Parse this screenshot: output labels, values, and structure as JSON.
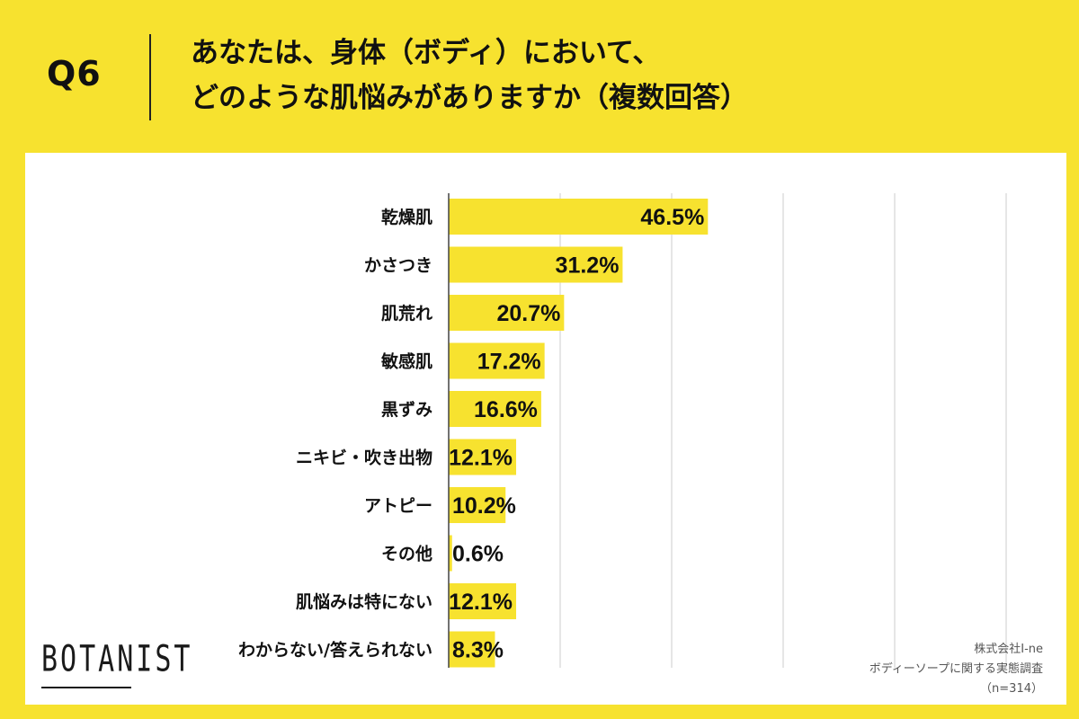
{
  "header": {
    "q_label": "Q6",
    "title_line1": "あなたは、身体（ボディ）において、",
    "title_line2": "どのような肌悩みがありますか（複数回答）"
  },
  "footer": {
    "logo": "BOTANIST",
    "source_company": "株式会社I-ne",
    "source_survey": "ボディーソープに関する実態調査",
    "source_n": "（n=314）"
  },
  "colors": {
    "bar": "#f7e22f",
    "background": "#f7e22f",
    "grid": "#cccccc",
    "axis": "#444444"
  },
  "chart_data": {
    "type": "bar",
    "orientation": "horizontal",
    "title": "どのような肌悩みがありますか（複数回答）",
    "unit": "%",
    "xlim": [
      0,
      100
    ],
    "grid_step": 20,
    "grid": true,
    "categories": [
      "乾燥肌",
      "かさつき",
      "肌荒れ",
      "敏感肌",
      "黒ずみ",
      "ニキビ・吹き出物",
      "アトピー",
      "その他",
      "肌悩みは特にない",
      "わからない/答えられない"
    ],
    "values": [
      46.5,
      31.2,
      20.7,
      17.2,
      16.6,
      12.1,
      10.2,
      0.6,
      12.1,
      8.3
    ],
    "value_labels": [
      "46.5%",
      "31.2%",
      "20.7%",
      "17.2%",
      "16.6%",
      "12.1%",
      "10.2%",
      "0.6%",
      "12.1%",
      "8.3%"
    ]
  }
}
